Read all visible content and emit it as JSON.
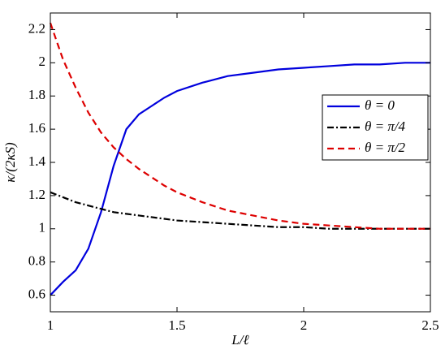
{
  "chart_data": {
    "type": "line",
    "xlabel": "L/ℓ",
    "ylabel": "κ/(2κS)",
    "x": [
      1,
      1.05,
      1.1,
      1.15,
      1.2,
      1.25,
      1.3,
      1.35,
      1.4,
      1.45,
      1.5,
      1.6,
      1.7,
      1.8,
      1.9,
      2.0,
      2.1,
      2.2,
      2.3,
      2.4,
      2.5
    ],
    "series": [
      {
        "name": "θ = 0",
        "color": "#0000dd",
        "style": "solid",
        "values": [
          0.6,
          0.68,
          0.75,
          0.88,
          1.1,
          1.38,
          1.6,
          1.69,
          1.74,
          1.79,
          1.83,
          1.88,
          1.92,
          1.94,
          1.96,
          1.97,
          1.98,
          1.99,
          1.99,
          2.0,
          2.0
        ]
      },
      {
        "name": "θ = π/4",
        "color": "#000000",
        "style": "dashdot",
        "values": [
          1.22,
          1.19,
          1.16,
          1.14,
          1.12,
          1.1,
          1.09,
          1.08,
          1.07,
          1.06,
          1.05,
          1.04,
          1.03,
          1.02,
          1.01,
          1.01,
          1.0,
          1.0,
          1.0,
          1.0,
          1.0
        ]
      },
      {
        "name": "θ = π/2",
        "color": "#dd0000",
        "style": "dashed",
        "values": [
          2.24,
          2.02,
          1.85,
          1.7,
          1.58,
          1.49,
          1.42,
          1.36,
          1.31,
          1.26,
          1.22,
          1.16,
          1.11,
          1.08,
          1.05,
          1.03,
          1.02,
          1.01,
          1.0,
          1.0,
          1.0
        ]
      }
    ],
    "xlim": [
      1,
      2.5
    ],
    "xticks": [
      1,
      1.5,
      2,
      2.5
    ],
    "ylim": [
      0.5,
      2.3
    ],
    "yticks": [
      0.6,
      0.8,
      1,
      1.2,
      1.4,
      1.6,
      1.8,
      2,
      2.2
    ],
    "grid": false,
    "legend": "center right"
  }
}
